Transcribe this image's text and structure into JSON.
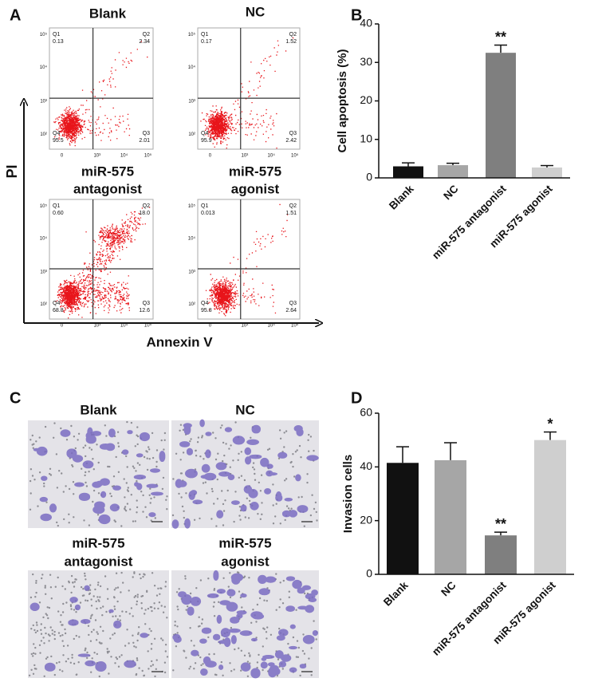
{
  "figure": {
    "A": {
      "label": "A",
      "x_axis_label": "Annexin V",
      "y_axis_label": "PI",
      "xticks": [
        "0",
        "10³",
        "10⁴",
        "10⁵"
      ],
      "yticks": [
        "10²",
        "10³",
        "10⁴",
        "10⁵"
      ],
      "plots": [
        {
          "title": [
            "Blank"
          ],
          "quadrants": [
            {
              "name": "Q1",
              "value": "0.13"
            },
            {
              "name": "Q2",
              "value": "2.34"
            },
            {
              "name": "Q3",
              "value": "2.01"
            },
            {
              "name": "Q4",
              "value": "95.5"
            }
          ]
        },
        {
          "title": [
            "NC"
          ],
          "quadrants": [
            {
              "name": "Q1",
              "value": "0.17"
            },
            {
              "name": "Q2",
              "value": "1.52"
            },
            {
              "name": "Q3",
              "value": "2.42"
            },
            {
              "name": "Q4",
              "value": "95.9"
            }
          ]
        },
        {
          "title": [
            "miR-575",
            "antagonist"
          ],
          "quadrants": [
            {
              "name": "Q1",
              "value": "0.60"
            },
            {
              "name": "Q2",
              "value": "18.0"
            },
            {
              "name": "Q3",
              "value": "12.6"
            },
            {
              "name": "Q4",
              "value": "68.8"
            }
          ]
        },
        {
          "title": [
            "miR-575",
            "agonist"
          ],
          "quadrants": [
            {
              "name": "Q1",
              "value": "0.013"
            },
            {
              "name": "Q2",
              "value": "1.51"
            },
            {
              "name": "Q3",
              "value": "2.64"
            },
            {
              "name": "Q4",
              "value": "95.8"
            }
          ]
        }
      ]
    },
    "C": {
      "label": "C",
      "images": [
        {
          "title": [
            "Blank"
          ]
        },
        {
          "title": [
            "NC"
          ]
        },
        {
          "title": [
            "miR-575",
            "antagonist"
          ]
        },
        {
          "title": [
            "miR-575",
            "agonist"
          ]
        }
      ]
    }
  },
  "chart_data": [
    {
      "type": "bar",
      "label": "B",
      "ylabel": "Cell apoptosis (%)",
      "categories": [
        "Blank",
        "NC",
        "miR-575 antagonist",
        "miR-575 agonist"
      ],
      "values": [
        3.0,
        3.3,
        32.5,
        2.7
      ],
      "errors": [
        0.9,
        0.5,
        2.0,
        0.5
      ],
      "colors": [
        "#111111",
        "#a6a6a6",
        "#7f7f7f",
        "#cfcfcf"
      ],
      "significance": [
        null,
        null,
        "**",
        null
      ],
      "ylim": [
        0,
        40
      ],
      "yticks": [
        0,
        10,
        20,
        30,
        40
      ]
    },
    {
      "type": "bar",
      "label": "D",
      "ylabel": "Invasion cells",
      "categories": [
        "Blank",
        "NC",
        "miR-575 antagonist",
        "miR-575 agonist"
      ],
      "values": [
        41.5,
        42.5,
        14.5,
        50
      ],
      "errors": [
        6,
        6.5,
        1.2,
        3
      ],
      "colors": [
        "#111111",
        "#a6a6a6",
        "#7f7f7f",
        "#cfcfcf"
      ],
      "significance": [
        null,
        null,
        "**",
        "*"
      ],
      "ylim": [
        0,
        60
      ],
      "yticks": [
        0,
        20,
        40,
        60
      ]
    }
  ]
}
